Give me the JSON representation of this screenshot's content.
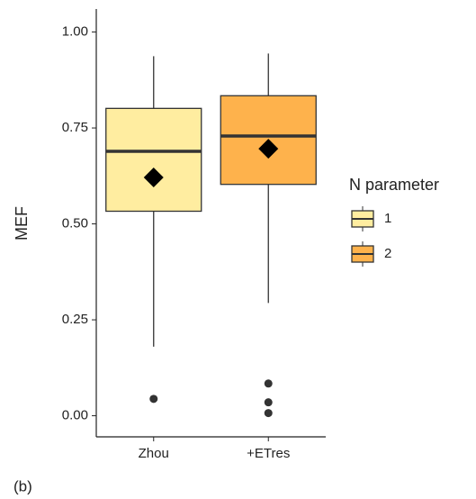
{
  "chart_data": {
    "type": "box",
    "y_label": "MEF",
    "categories": [
      "Zhou",
      "+ETres"
    ],
    "legend_title": "N parameter",
    "series": [
      {
        "name": "1",
        "color": "#ffeda0",
        "whisker_low": 0.18,
        "q1": 0.533,
        "median": 0.689,
        "q3": 0.801,
        "whisker_high": 0.937,
        "mean": 0.621,
        "outliers": [
          0.044
        ]
      },
      {
        "name": "2",
        "color": "#feb24c",
        "whisker_low": 0.294,
        "q1": 0.603,
        "median": 0.729,
        "q3": 0.834,
        "whisker_high": 0.944,
        "mean": 0.696,
        "outliers": [
          0.084,
          0.035,
          0.007
        ]
      }
    ],
    "ylim": [
      -0.055,
      1.06
    ],
    "yticks": [
      {
        "value": 0,
        "label": "0.00"
      },
      {
        "value": 0.25,
        "label": "0.25"
      },
      {
        "value": 0.5,
        "label": "0.50"
      },
      {
        "value": 0.75,
        "label": "0.75"
      },
      {
        "value": 1,
        "label": "1.00"
      }
    ],
    "grid": false
  },
  "caption": "(b)"
}
